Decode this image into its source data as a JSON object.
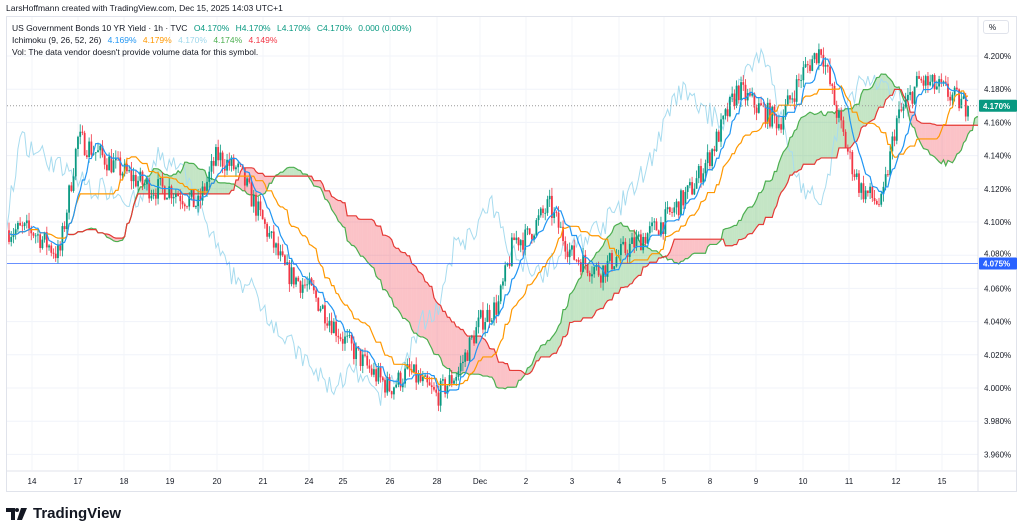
{
  "credit": "LarsHoffmann created with TradingView.com, Dec 15, 2025 14:03 UTC+1",
  "legend": {
    "symbol": "US Government Bonds 10 YR Yield · 1h · TVC",
    "o": "O4.170%",
    "h": "H4.170%",
    "l": "L4.170%",
    "c": "C4.170%",
    "chg": "0.000 (0.00%)",
    "ichimoku_label": "Ichimoku (9, 26, 52, 26)",
    "ichimoku_values": [
      "4.169%",
      "4.179%",
      "4.170%",
      "4.174%",
      "4.149%"
    ],
    "vol": "Vol: The data vendor doesn't provide volume data for this symbol."
  },
  "axis_unit": "%",
  "logo_text": "TradingView",
  "colors": {
    "up": "#089981",
    "down": "#f23645",
    "tenkan": "#2196f3",
    "kijun": "#ff9800",
    "chikou": "#a8dcef",
    "spanA": "#4caf50",
    "spanB": "#e53935",
    "hline": "#2962ff"
  },
  "chart_data": {
    "type": "candlestick",
    "title": "US Government Bonds 10 YR Yield · 1h · TVC",
    "ylim": [
      3.95,
      4.21
    ],
    "yticks": [
      "4.200%",
      "4.180%",
      "4.160%",
      "4.140%",
      "4.120%",
      "4.100%",
      "4.080%",
      "4.060%",
      "4.040%",
      "4.020%",
      "4.000%",
      "3.980%",
      "3.960%"
    ],
    "ytick_values": [
      4.2,
      4.18,
      4.16,
      4.14,
      4.12,
      4.1,
      4.08,
      4.06,
      4.04,
      4.02,
      4.0,
      3.98,
      3.96
    ],
    "xticks": [
      "14",
      "17",
      "18",
      "19",
      "20",
      "21",
      "24",
      "25",
      "26",
      "28",
      "Dec",
      "2",
      "3",
      "4",
      "5",
      "8",
      "9",
      "10",
      "11",
      "12",
      "15"
    ],
    "price_path": [
      [
        0,
        4.095
      ],
      [
        0.6,
        4.08
      ],
      [
        1,
        4.15
      ],
      [
        2,
        4.13
      ],
      [
        2.6,
        4.12
      ],
      [
        3,
        4.12
      ],
      [
        3.6,
        4.11
      ],
      [
        4,
        4.14
      ],
      [
        4.5,
        4.13
      ],
      [
        5,
        4.1
      ],
      [
        5.5,
        4.07
      ],
      [
        6,
        4.06
      ],
      [
        7,
        4.03
      ],
      [
        7.6,
        4.01
      ],
      [
        8,
        4.0
      ],
      [
        8.4,
        4.01
      ],
      [
        9,
        3.995
      ],
      [
        9.5,
        4.01
      ],
      [
        10,
        4.04
      ],
      [
        10.4,
        4.05
      ],
      [
        10.75,
        4.09
      ],
      [
        11,
        4.09
      ],
      [
        11.5,
        4.11
      ],
      [
        12,
        4.08
      ],
      [
        12.6,
        4.07
      ],
      [
        13,
        4.08
      ],
      [
        13.5,
        4.09
      ],
      [
        14,
        4.1
      ],
      [
        14.6,
        4.12
      ],
      [
        15,
        4.14
      ],
      [
        15.6,
        4.18
      ],
      [
        16,
        4.17
      ],
      [
        16.5,
        4.16
      ],
      [
        17,
        4.19
      ],
      [
        17.4,
        4.205
      ],
      [
        17.7,
        4.17
      ],
      [
        18,
        4.14
      ],
      [
        18.25,
        4.12
      ],
      [
        18.7,
        4.11
      ],
      [
        19,
        4.16
      ],
      [
        19.5,
        4.185
      ],
      [
        20,
        4.18
      ],
      [
        20.5,
        4.17
      ]
    ],
    "ichimoku": {
      "tenkan": 9,
      "kijun": 26,
      "senkou_b": 52,
      "displacement": 26
    },
    "last_price": "4.170%",
    "hline_price": "4.075%",
    "last_price_value": 4.17,
    "hline_value": 4.075
  }
}
